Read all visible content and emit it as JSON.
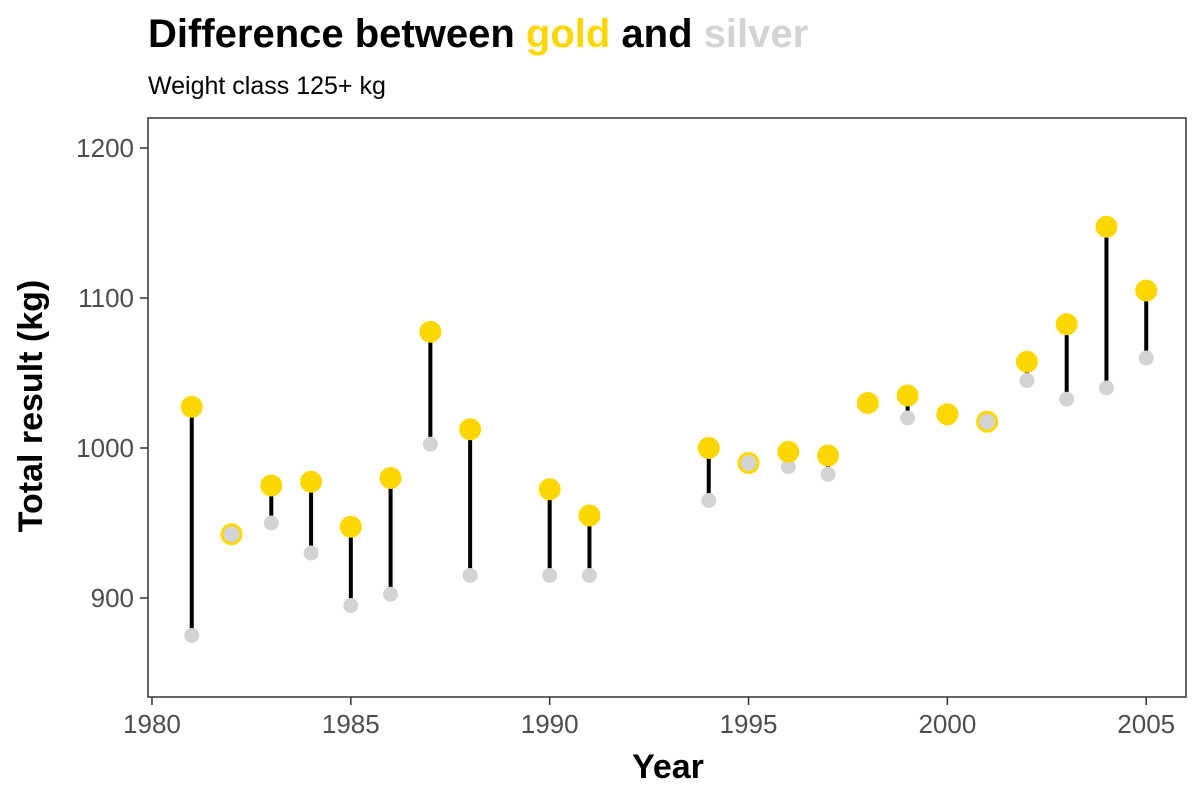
{
  "chart_data": {
    "type": "dumbbell",
    "title": {
      "prefix": "Difference between ",
      "gold_word": "gold",
      "connector": " and ",
      "silver_word": "silver"
    },
    "subtitle": "Weight class 125+ kg",
    "xlabel": "Year",
    "ylabel": "Total result (kg)",
    "xlim": [
      1979.9,
      2006.0
    ],
    "ylim": [
      834,
      1220
    ],
    "x_ticks": [
      {
        "value": 1980,
        "label": "1980"
      },
      {
        "value": 1985,
        "label": "1985"
      },
      {
        "value": 1990,
        "label": "1990"
      },
      {
        "value": 1995,
        "label": "1995"
      },
      {
        "value": 2000,
        "label": "2000"
      },
      {
        "value": 2005,
        "label": "2005"
      }
    ],
    "y_ticks": [
      {
        "value": 900,
        "label": "900"
      },
      {
        "value": 1000,
        "label": "1000"
      },
      {
        "value": 1100,
        "label": "1100"
      },
      {
        "value": 1200,
        "label": "1200"
      }
    ],
    "colors": {
      "gold": "#FFD700",
      "silver": "#D3D3D3",
      "segment": "#000000",
      "title": "#000000",
      "panel_border": "#333333",
      "tick_text": "#4d4d4d"
    },
    "series": [
      {
        "name": "gold",
        "values": [
          {
            "year": 1981,
            "value": 1027.5
          },
          {
            "year": 1982,
            "value": 942.5
          },
          {
            "year": 1983,
            "value": 975
          },
          {
            "year": 1984,
            "value": 977.5
          },
          {
            "year": 1985,
            "value": 947.5
          },
          {
            "year": 1986,
            "value": 980
          },
          {
            "year": 1987,
            "value": 1077.5
          },
          {
            "year": 1988,
            "value": 1012.5
          },
          {
            "year": 1990,
            "value": 972.5
          },
          {
            "year": 1991,
            "value": 955
          },
          {
            "year": 1994,
            "value": 1000
          },
          {
            "year": 1995,
            "value": 990
          },
          {
            "year": 1996,
            "value": 997.5
          },
          {
            "year": 1997,
            "value": 995
          },
          {
            "year": 1998,
            "value": 1030
          },
          {
            "year": 1999,
            "value": 1035
          },
          {
            "year": 2000,
            "value": 1022.5
          },
          {
            "year": 2001,
            "value": 1017.5
          },
          {
            "year": 2002,
            "value": 1057.5
          },
          {
            "year": 2003,
            "value": 1082.5
          },
          {
            "year": 2004,
            "value": 1147.5
          },
          {
            "year": 2005,
            "value": 1105
          }
        ]
      },
      {
        "name": "silver",
        "values": [
          {
            "year": 1981,
            "value": 875
          },
          {
            "year": 1982,
            "value": 942.5
          },
          {
            "year": 1983,
            "value": 950
          },
          {
            "year": 1984,
            "value": 930
          },
          {
            "year": 1985,
            "value": 895
          },
          {
            "year": 1986,
            "value": 902.5
          },
          {
            "year": 1987,
            "value": 1002.5
          },
          {
            "year": 1988,
            "value": 915
          },
          {
            "year": 1990,
            "value": 915
          },
          {
            "year": 1991,
            "value": 915
          },
          {
            "year": 1994,
            "value": 965
          },
          {
            "year": 1995,
            "value": 990
          },
          {
            "year": 1996,
            "value": 987.5
          },
          {
            "year": 1997,
            "value": 982.5
          },
          {
            "year": 1998,
            "value": 1027.5
          },
          {
            "year": 1999,
            "value": 1020
          },
          {
            "year": 2000,
            "value": 1020
          },
          {
            "year": 2001,
            "value": 1017.5
          },
          {
            "year": 2002,
            "value": 1045
          },
          {
            "year": 2003,
            "value": 1032.5
          },
          {
            "year": 2004,
            "value": 1040
          },
          {
            "year": 2005,
            "value": 1060
          }
        ]
      }
    ]
  }
}
